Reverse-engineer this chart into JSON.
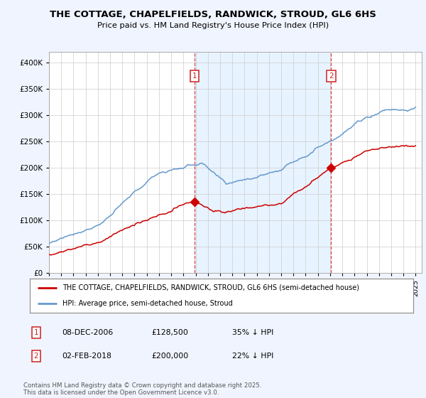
{
  "title": "THE COTTAGE, CHAPELFIELDS, RANDWICK, STROUD, GL6 6HS",
  "subtitle": "Price paid vs. HM Land Registry's House Price Index (HPI)",
  "red_label": "THE COTTAGE, CHAPELFIELDS, RANDWICK, STROUD, GL6 6HS (semi-detached house)",
  "blue_label": "HPI: Average price, semi-detached house, Stroud",
  "annotation1": {
    "num": "1",
    "date": "08-DEC-2006",
    "price": "£128,500",
    "pct": "35% ↓ HPI",
    "x_year": 2006.92,
    "y_red": 128500
  },
  "annotation2": {
    "num": "2",
    "date": "02-FEB-2018",
    "price": "£200,000",
    "pct": "22% ↓ HPI",
    "x_year": 2018.08,
    "y_red": 200000
  },
  "footer": "Contains HM Land Registry data © Crown copyright and database right 2025.\nThis data is licensed under the Open Government Licence v3.0.",
  "ylim": [
    0,
    420000
  ],
  "xlim_start": 1995.0,
  "xlim_end": 2025.5,
  "red_color": "#cc0000",
  "blue_color": "#6699cc",
  "shade_color": "#ddeeff",
  "dashed_color": "#dd4444",
  "background_color": "#f0f4ff",
  "plot_bg": "#ffffff",
  "num_box_color": "#cc2222"
}
